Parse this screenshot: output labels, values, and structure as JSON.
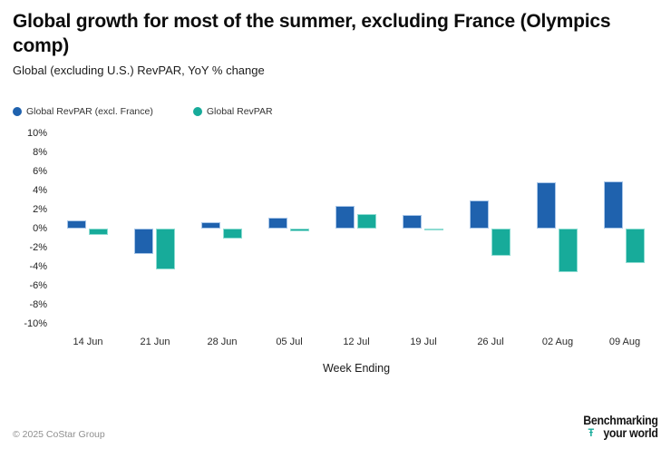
{
  "header": {
    "title": "Global growth for most of the summer, excluding France (Olympics comp)",
    "subtitle": "Global (excluding U.S.) RevPAR, YoY % change"
  },
  "chart_data": {
    "type": "bar",
    "categories": [
      "14 Jun",
      "21 Jun",
      "28 Jun",
      "05 Jul",
      "12 Jul",
      "19 Jul",
      "26 Jul",
      "02 Aug",
      "09 Aug"
    ],
    "series": [
      {
        "name": "Global RevPAR (excl. France)",
        "color": "#1F62AE",
        "values": [
          0.8,
          -2.7,
          0.6,
          1.1,
          2.3,
          1.4,
          2.9,
          4.8,
          4.9
        ]
      },
      {
        "name": "Global RevPAR",
        "color": "#17AB9A",
        "values": [
          -0.7,
          -4.3,
          -1.1,
          -0.3,
          1.5,
          -0.1,
          -2.9,
          -4.6,
          -3.7
        ]
      }
    ],
    "title": "Global growth for most of the summer, excluding France (Olympics comp)",
    "xlabel": "Week Ending",
    "ylabel": "",
    "ylim": [
      -10,
      10
    ],
    "ytick_labels": [
      "10%",
      "8%",
      "6%",
      "4%",
      "2%",
      "0%",
      "-2%",
      "-4%",
      "-6%",
      "-8%",
      "-10%"
    ],
    "grid": false,
    "legend_position": "top-left"
  },
  "footer": {
    "copyright": "© 2025 CoStar Group",
    "logo": {
      "line1": "Benchmarking",
      "line2": "your world",
      "mark": "Ŧ"
    }
  }
}
